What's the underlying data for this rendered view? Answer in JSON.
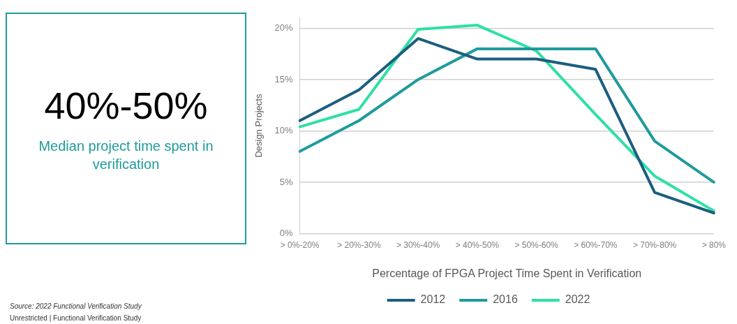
{
  "chart_data": {
    "type": "line",
    "annotations": [
      "40%-50%",
      "Median project time spent in verification",
      "Source:  2022 Functional Verification Study",
      "Unrestricted | Functional Verification Study"
    ],
    "xlabel": "Percentage of FPGA Project Time Spent in Verification",
    "ylabel": "Design Projects",
    "categories": [
      "> 0%-20%",
      "> 20%-30%",
      "> 30%-40%",
      "> 40%-50%",
      "> 50%-60%",
      "> 60%-70%",
      "> 70%-80%",
      "> 80%"
    ],
    "series": [
      {
        "name": "2012",
        "color": "#1b5e80",
        "values": [
          11,
          14,
          19,
          17,
          17,
          16,
          4,
          2
        ]
      },
      {
        "name": "2016",
        "color": "#1f9b9b",
        "values": [
          8,
          11,
          15,
          18,
          18,
          18,
          9,
          5
        ]
      },
      {
        "name": "2022",
        "color": "#2ee0a6",
        "values": [
          10.4,
          12.1,
          19.9,
          20.3,
          17.8,
          11.6,
          5.6,
          2.2
        ]
      }
    ],
    "ylim": [
      0,
      21
    ],
    "yticks": [
      {
        "value": 0,
        "label": "0%"
      },
      {
        "value": 5,
        "label": "5%"
      },
      {
        "value": 10,
        "label": "10%"
      },
      {
        "value": 15,
        "label": "15%"
      },
      {
        "value": 20,
        "label": "20%"
      }
    ],
    "grid": "y",
    "legend": "bottom",
    "marker": "none",
    "line_style": "solid"
  }
}
